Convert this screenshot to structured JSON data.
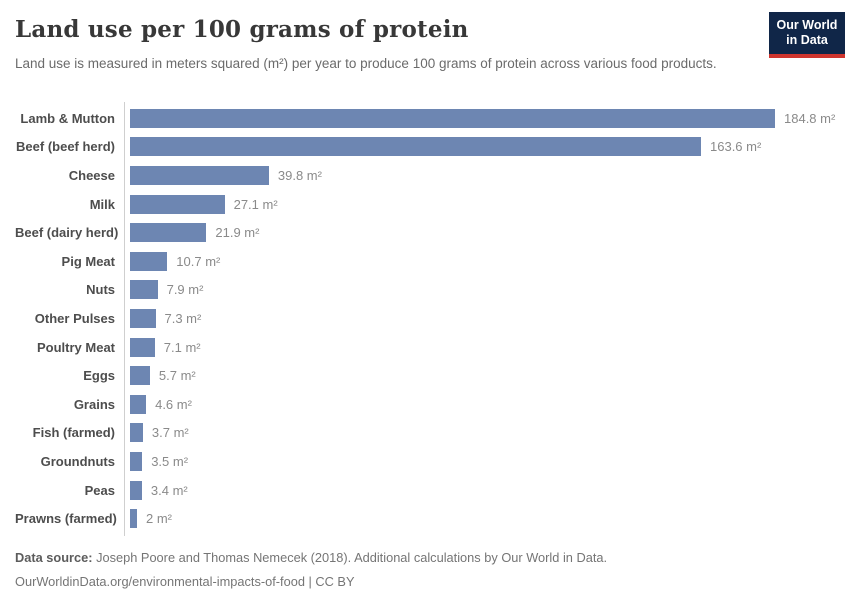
{
  "header": {
    "title": "Land use per 100 grams of protein",
    "subtitle": "Land use is measured in meters squared (m²) per year to produce 100 grams of protein across various food products.",
    "logo": {
      "line1": "Our World",
      "line2": "in Data",
      "bg_color": "#102648",
      "accent_color": "#cf352e"
    }
  },
  "chart_data": {
    "type": "bar",
    "orientation": "horizontal",
    "title": "Land use per 100 grams of protein",
    "xlabel": "",
    "ylabel": "",
    "unit": "m²",
    "grid": false,
    "xlim": [
      0,
      184.8
    ],
    "bar_color": "#6d86b2",
    "categories": [
      "Lamb & Mutton",
      "Beef (beef herd)",
      "Cheese",
      "Milk",
      "Beef (dairy herd)",
      "Pig Meat",
      "Nuts",
      "Other Pulses",
      "Poultry Meat",
      "Eggs",
      "Grains",
      "Fish (farmed)",
      "Groundnuts",
      "Peas",
      "Prawns (farmed)"
    ],
    "values": [
      184.8,
      163.6,
      39.8,
      27.1,
      21.9,
      10.7,
      7.9,
      7.3,
      7.1,
      5.7,
      4.6,
      3.7,
      3.5,
      3.4,
      2
    ],
    "value_labels": [
      "184.8 m²",
      "163.6 m²",
      "39.8 m²",
      "27.1 m²",
      "21.9 m²",
      "10.7 m²",
      "7.9 m²",
      "7.3 m²",
      "7.1 m²",
      "5.7 m²",
      "4.6 m²",
      "3.7 m²",
      "3.5 m²",
      "3.4 m²",
      "2 m²"
    ]
  },
  "footer": {
    "source_label": "Data source:",
    "source_text": " Joseph Poore and Thomas Nemecek (2018). Additional calculations by Our World in Data.",
    "link_line": "OurWorldinData.org/environmental-impacts-of-food | CC BY"
  }
}
